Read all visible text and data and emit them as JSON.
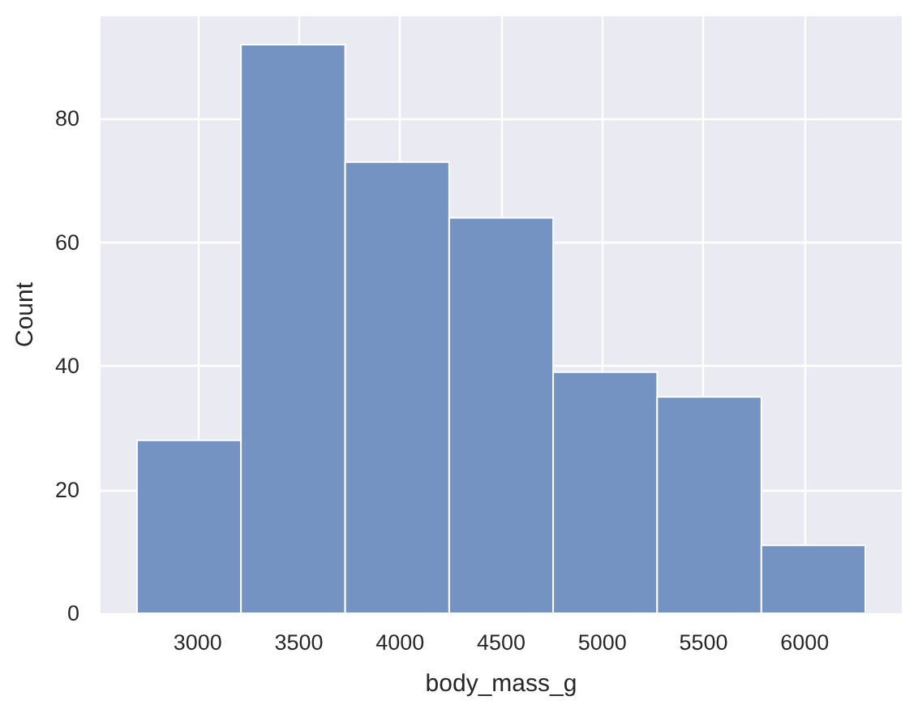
{
  "chart_data": {
    "type": "histogram",
    "xlabel": "body_mass_g",
    "ylabel": "Count",
    "bins": [
      2700,
      3214,
      3729,
      4243,
      4757,
      5271,
      5786,
      6300
    ],
    "values": [
      28,
      92,
      73,
      64,
      39,
      35,
      11
    ],
    "color": "#7492c2",
    "xlim": [
      2520,
      6480
    ],
    "ylim": [
      0,
      96.6
    ],
    "xticks": [
      3000,
      3500,
      4000,
      4500,
      5000,
      5500,
      6000
    ],
    "yticks": [
      0,
      20,
      40,
      60,
      80
    ],
    "grid": true
  }
}
